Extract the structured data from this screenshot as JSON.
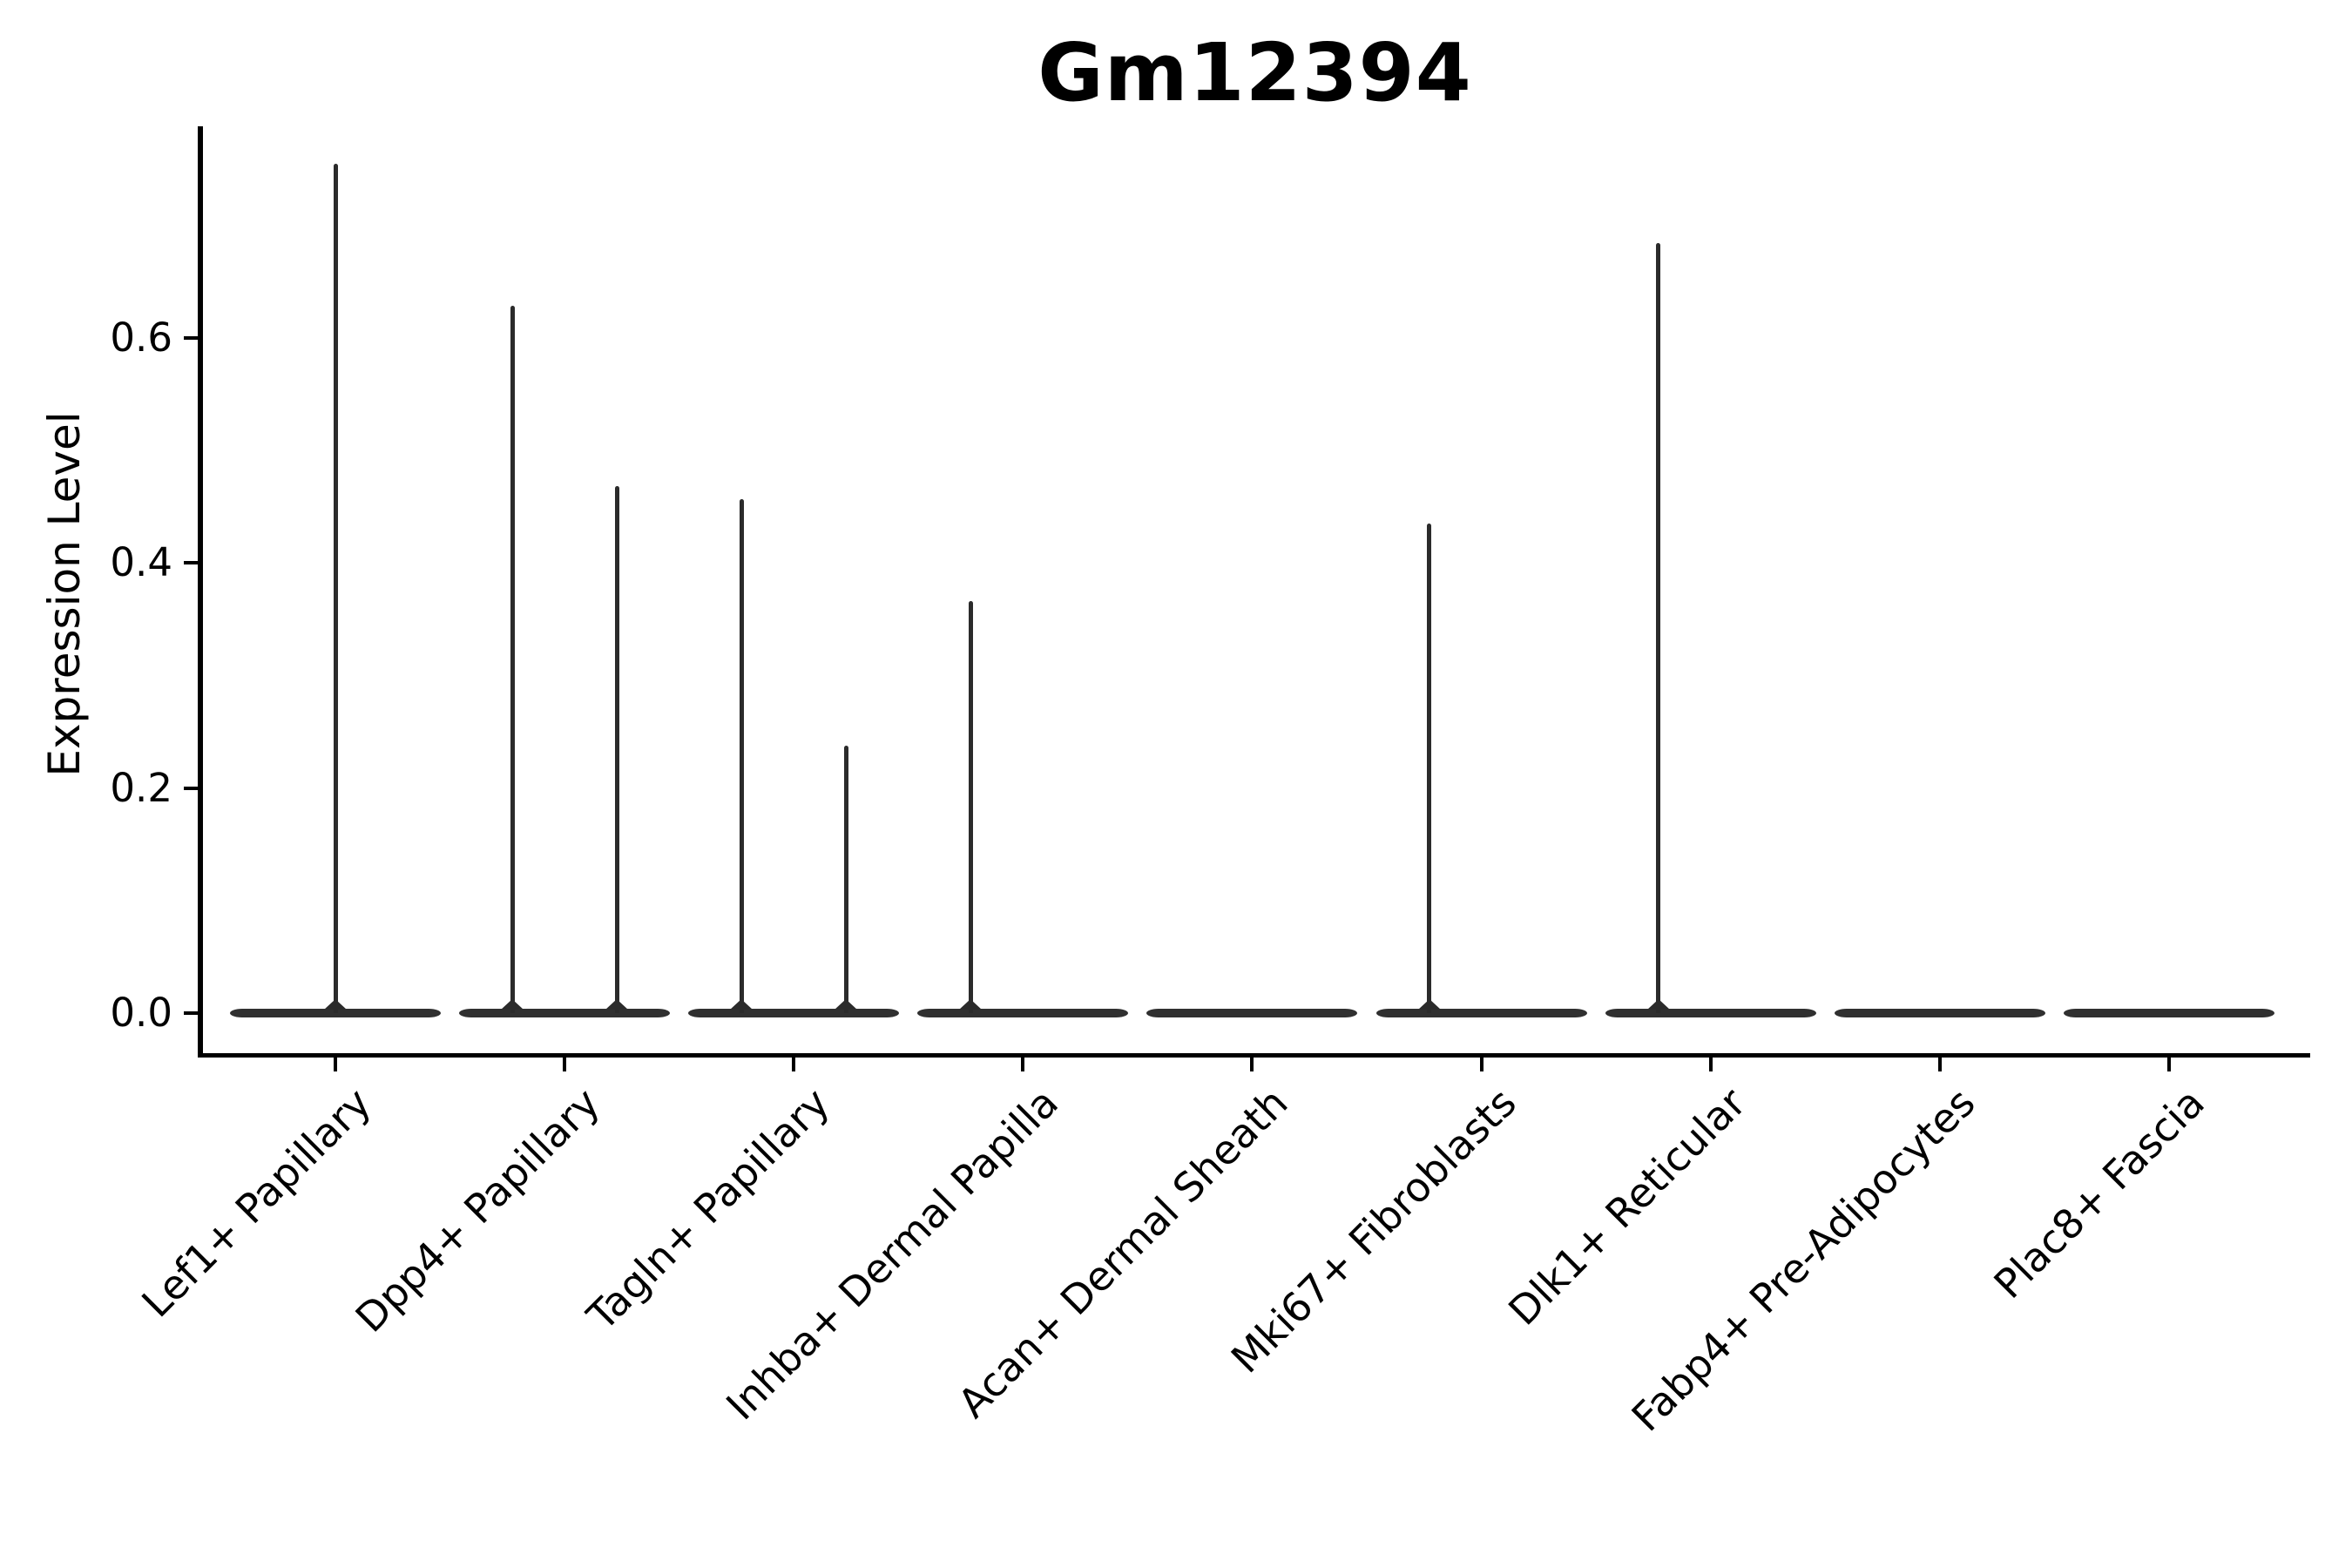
{
  "chart_data": {
    "type": "violin",
    "title": "Gm12394",
    "xlabel": "",
    "ylabel": "Expression Level",
    "yticks": [
      0.0,
      0.2,
      0.4,
      0.6
    ],
    "ytick_labels": [
      "0.0",
      "0.2",
      "0.4",
      "0.6"
    ],
    "ylim": [
      -0.037,
      0.788
    ],
    "grid": false,
    "legend": null,
    "categories": [
      "Lef1+ Papillary",
      "Dpp4+ Papillary",
      "Tagln+ Papillary",
      "Inhba+ Dermal Papilla",
      "Acan+ Dermal Sheath",
      "Mki67+ Fibroblasts",
      "Dlk1+ Reticular",
      "Fabp4+ Pre-Adipocytes",
      "Plac8+ Fascia"
    ],
    "violins": [
      {
        "category": "Lef1+ Papillary",
        "baseline_value": 0.0,
        "spikes": [
          {
            "offset_frac": 0.0,
            "max_value": 0.755
          }
        ]
      },
      {
        "category": "Dpp4+ Papillary",
        "baseline_value": 0.0,
        "spikes": [
          {
            "offset_frac": -0.228,
            "max_value": 0.629
          },
          {
            "offset_frac": 0.228,
            "max_value": 0.468
          }
        ]
      },
      {
        "category": "Tagln+ Papillary",
        "baseline_value": 0.0,
        "spikes": [
          {
            "offset_frac": -0.228,
            "max_value": 0.457
          },
          {
            "offset_frac": 0.228,
            "max_value": 0.238
          }
        ]
      },
      {
        "category": "Inhba+ Dermal Papilla",
        "baseline_value": 0.0,
        "spikes": [
          {
            "offset_frac": -0.228,
            "max_value": 0.366
          }
        ]
      },
      {
        "category": "Acan+ Dermal Sheath",
        "baseline_value": 0.0,
        "spikes": []
      },
      {
        "category": "Mki67+ Fibroblasts",
        "baseline_value": 0.0,
        "spikes": [
          {
            "offset_frac": -0.228,
            "max_value": 0.435
          }
        ]
      },
      {
        "category": "Dlk1+ Reticular",
        "baseline_value": 0.0,
        "spikes": [
          {
            "offset_frac": -0.228,
            "max_value": 0.684
          }
        ]
      },
      {
        "category": "Fabp4+ Pre-Adipocytes",
        "baseline_value": 0.0,
        "spikes": []
      },
      {
        "category": "Plac8+ Fascia",
        "baseline_value": 0.0,
        "spikes": []
      }
    ],
    "notes": "Violin plot of single-gene expression per fibroblast cluster; distributions concentrated at 0 with thin spikes to per-cluster maxima."
  },
  "colors": {
    "violin": "#303030",
    "spike": "#2b2b2b",
    "axis": "#000000",
    "text": "#000000",
    "background": "#ffffff"
  }
}
